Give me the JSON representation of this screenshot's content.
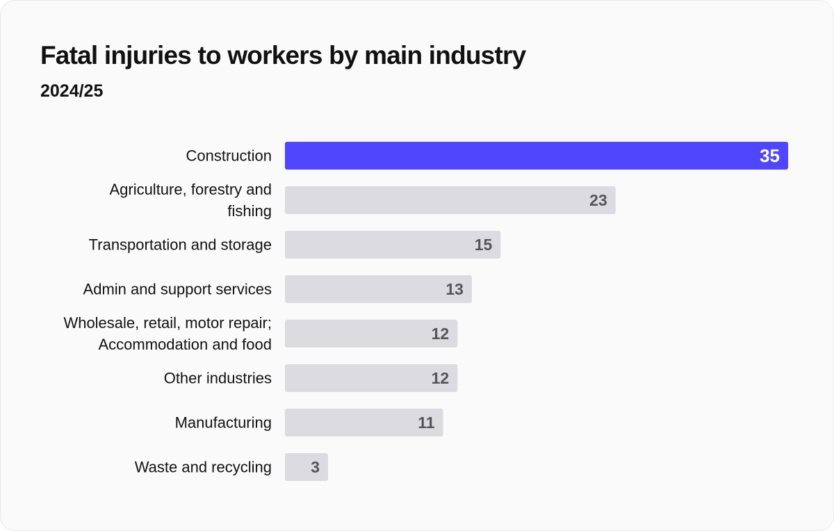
{
  "colors": {
    "highlight": "#4f46fe",
    "bar": "#dcdbe1",
    "highlight_text": "#ffffff",
    "value_text": "#555559"
  },
  "chart_data": {
    "type": "bar",
    "orientation": "horizontal",
    "title": "Fatal injuries to workers by main industry",
    "subtitle": "2024/25",
    "xlabel": "",
    "ylabel": "",
    "xlim": [
      0,
      35
    ],
    "grid": false,
    "highlighted_category": "Construction",
    "categories": [
      [
        "Construction"
      ],
      [
        "Agriculture, forestry and",
        "fishing"
      ],
      [
        "Transportation and storage"
      ],
      [
        "Admin and support services"
      ],
      [
        "Wholesale, retail, motor repair;",
        "Accommodation and food"
      ],
      [
        "Other industries"
      ],
      [
        "Manufacturing"
      ],
      [
        "Waste and recycling"
      ]
    ],
    "values": [
      35,
      23,
      15,
      13,
      12,
      12,
      11,
      3
    ]
  }
}
